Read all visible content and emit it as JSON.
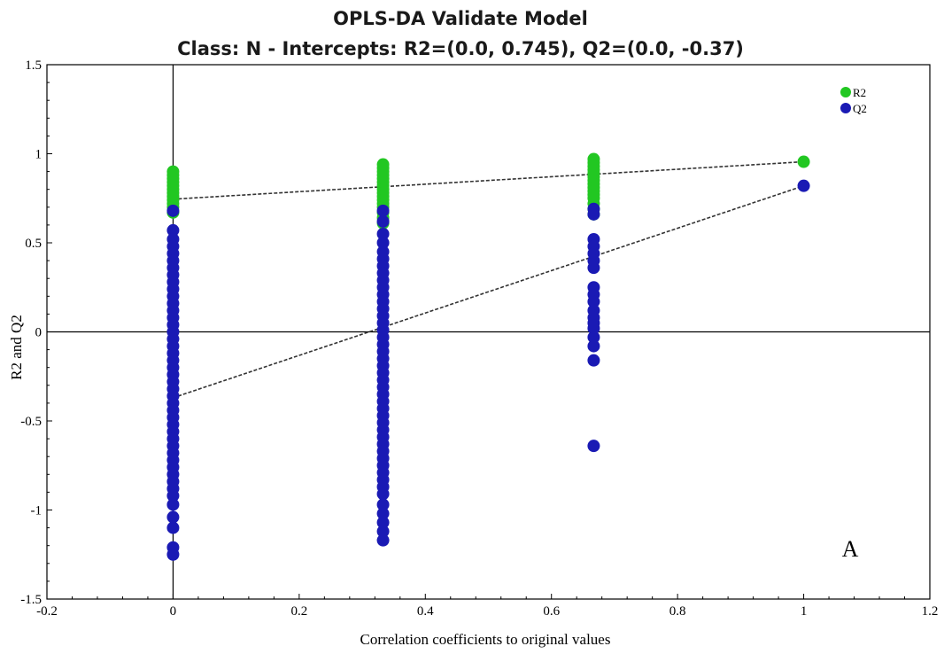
{
  "chart_data": {
    "type": "scatter",
    "title": "OPLS-DA Validate Model",
    "subtitle": "Class: N - Intercepts: R2=(0.0, 0.745), Q2=(0.0, -0.37)",
    "xlabel": "Correlation coefficients to original values",
    "ylabel": "R2 and Q2",
    "xlim": [
      -0.2,
      1.2
    ],
    "ylim": [
      -1.5,
      1.5
    ],
    "xticks": [
      -0.2,
      0,
      0.2,
      0.4,
      0.6,
      0.8,
      1,
      1.2
    ],
    "yticks": [
      -1.5,
      -1,
      -0.5,
      0,
      0.5,
      1,
      1.5
    ],
    "xtick_labels": [
      "-0.2",
      "0",
      "0.2",
      "0.4",
      "0.6",
      "0.8",
      "1",
      "1.2"
    ],
    "ytick_labels": [
      "-1.5",
      "-1",
      "-0.5",
      "0",
      "0.5",
      "1",
      "1.5"
    ],
    "grid": false,
    "legend_position": "top-right",
    "annotation": "A",
    "series": [
      {
        "name": "R2",
        "color": "#22c722",
        "points": [
          [
            0,
            0.9
          ],
          [
            0,
            0.88
          ],
          [
            0,
            0.86
          ],
          [
            0,
            0.84
          ],
          [
            0,
            0.82
          ],
          [
            0,
            0.8
          ],
          [
            0,
            0.78
          ],
          [
            0,
            0.76
          ],
          [
            0,
            0.74
          ],
          [
            0,
            0.72
          ],
          [
            0,
            0.7
          ],
          [
            0,
            0.67
          ],
          [
            0.333,
            0.94
          ],
          [
            0.333,
            0.92
          ],
          [
            0.333,
            0.9
          ],
          [
            0.333,
            0.88
          ],
          [
            0.333,
            0.86
          ],
          [
            0.333,
            0.84
          ],
          [
            0.333,
            0.82
          ],
          [
            0.333,
            0.8
          ],
          [
            0.333,
            0.78
          ],
          [
            0.333,
            0.76
          ],
          [
            0.333,
            0.74
          ],
          [
            0.333,
            0.72
          ],
          [
            0.333,
            0.7
          ],
          [
            0.333,
            0.67
          ],
          [
            0.333,
            0.64
          ],
          [
            0.333,
            0.61
          ],
          [
            0.667,
            0.97
          ],
          [
            0.667,
            0.95
          ],
          [
            0.667,
            0.93
          ],
          [
            0.667,
            0.91
          ],
          [
            0.667,
            0.89
          ],
          [
            0.667,
            0.87
          ],
          [
            0.667,
            0.85
          ],
          [
            0.667,
            0.83
          ],
          [
            0.667,
            0.81
          ],
          [
            0.667,
            0.79
          ],
          [
            0.667,
            0.77
          ],
          [
            0.667,
            0.75
          ],
          [
            0.667,
            0.72
          ],
          [
            0.667,
            0.69
          ],
          [
            0.667,
            0.66
          ],
          [
            1,
            0.955
          ]
        ]
      },
      {
        "name": "Q2",
        "color": "#1a1ab4",
        "points": [
          [
            0,
            0.68
          ],
          [
            0,
            0.57
          ],
          [
            0,
            0.52
          ],
          [
            0,
            0.48
          ],
          [
            0,
            0.44
          ],
          [
            0,
            0.4
          ],
          [
            0,
            0.36
          ],
          [
            0,
            0.32
          ],
          [
            0,
            0.28
          ],
          [
            0,
            0.24
          ],
          [
            0,
            0.2
          ],
          [
            0,
            0.16
          ],
          [
            0,
            0.12
          ],
          [
            0,
            0.08
          ],
          [
            0,
            0.04
          ],
          [
            0,
            0.0
          ],
          [
            0,
            -0.04
          ],
          [
            0,
            -0.08
          ],
          [
            0,
            -0.12
          ],
          [
            0,
            -0.16
          ],
          [
            0,
            -0.2
          ],
          [
            0,
            -0.24
          ],
          [
            0,
            -0.28
          ],
          [
            0,
            -0.32
          ],
          [
            0,
            -0.36
          ],
          [
            0,
            -0.4
          ],
          [
            0,
            -0.44
          ],
          [
            0,
            -0.48
          ],
          [
            0,
            -0.52
          ],
          [
            0,
            -0.56
          ],
          [
            0,
            -0.6
          ],
          [
            0,
            -0.64
          ],
          [
            0,
            -0.68
          ],
          [
            0,
            -0.72
          ],
          [
            0,
            -0.76
          ],
          [
            0,
            -0.8
          ],
          [
            0,
            -0.84
          ],
          [
            0,
            -0.88
          ],
          [
            0,
            -0.92
          ],
          [
            0,
            -0.97
          ],
          [
            0,
            -1.04
          ],
          [
            0,
            -1.1
          ],
          [
            0,
            -1.21
          ],
          [
            0,
            -1.25
          ],
          [
            0.333,
            0.68
          ],
          [
            0.333,
            0.62
          ],
          [
            0.333,
            0.55
          ],
          [
            0.333,
            0.5
          ],
          [
            0.333,
            0.45
          ],
          [
            0.333,
            0.41
          ],
          [
            0.333,
            0.37
          ],
          [
            0.333,
            0.33
          ],
          [
            0.333,
            0.29
          ],
          [
            0.333,
            0.25
          ],
          [
            0.333,
            0.21
          ],
          [
            0.333,
            0.17
          ],
          [
            0.333,
            0.13
          ],
          [
            0.333,
            0.09
          ],
          [
            0.333,
            0.05
          ],
          [
            0.333,
            0.01
          ],
          [
            0.333,
            -0.03
          ],
          [
            0.333,
            -0.07
          ],
          [
            0.333,
            -0.11
          ],
          [
            0.333,
            -0.15
          ],
          [
            0.333,
            -0.19
          ],
          [
            0.333,
            -0.23
          ],
          [
            0.333,
            -0.27
          ],
          [
            0.333,
            -0.31
          ],
          [
            0.333,
            -0.35
          ],
          [
            0.333,
            -0.39
          ],
          [
            0.333,
            -0.43
          ],
          [
            0.333,
            -0.47
          ],
          [
            0.333,
            -0.51
          ],
          [
            0.333,
            -0.55
          ],
          [
            0.333,
            -0.59
          ],
          [
            0.333,
            -0.63
          ],
          [
            0.333,
            -0.67
          ],
          [
            0.333,
            -0.71
          ],
          [
            0.333,
            -0.75
          ],
          [
            0.333,
            -0.79
          ],
          [
            0.333,
            -0.83
          ],
          [
            0.333,
            -0.87
          ],
          [
            0.333,
            -0.91
          ],
          [
            0.333,
            -0.97
          ],
          [
            0.333,
            -1.02
          ],
          [
            0.333,
            -1.07
          ],
          [
            0.333,
            -1.12
          ],
          [
            0.333,
            -1.17
          ],
          [
            0.667,
            0.69
          ],
          [
            0.667,
            0.66
          ],
          [
            0.667,
            0.52
          ],
          [
            0.667,
            0.48
          ],
          [
            0.667,
            0.44
          ],
          [
            0.667,
            0.4
          ],
          [
            0.667,
            0.36
          ],
          [
            0.667,
            0.25
          ],
          [
            0.667,
            0.21
          ],
          [
            0.667,
            0.17
          ],
          [
            0.667,
            0.12
          ],
          [
            0.667,
            0.08
          ],
          [
            0.667,
            0.05
          ],
          [
            0.667,
            0.02
          ],
          [
            0.667,
            -0.03
          ],
          [
            0.667,
            -0.08
          ],
          [
            0.667,
            -0.16
          ],
          [
            0.667,
            -0.64
          ],
          [
            1,
            0.82
          ]
        ]
      }
    ],
    "lines": [
      {
        "series": "R2",
        "from": [
          0,
          0.745
        ],
        "to": [
          1,
          0.955
        ]
      },
      {
        "series": "Q2",
        "from": [
          0,
          -0.37
        ],
        "to": [
          1,
          0.82
        ]
      }
    ]
  }
}
